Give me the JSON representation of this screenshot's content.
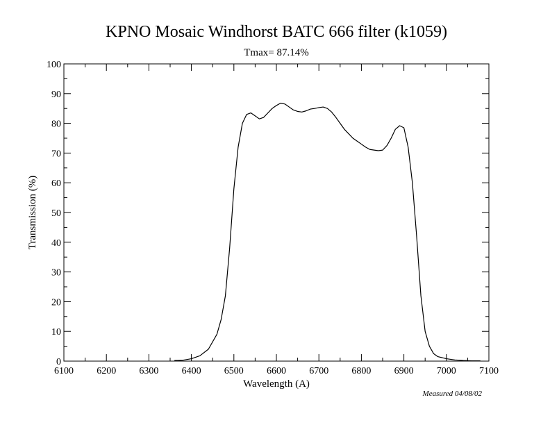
{
  "chart_data": {
    "type": "line",
    "title": "KPNO Mosaic Windhorst BATC 666 filter (k1059)",
    "subtitle": "Tmax= 87.14%",
    "xlabel": "Wavelength (A)",
    "ylabel": "Transmission (%)",
    "xlim": [
      6100,
      7100
    ],
    "ylim": [
      0,
      100
    ],
    "xticks": [
      6100,
      6200,
      6300,
      6400,
      6500,
      6600,
      6700,
      6800,
      6900,
      7000,
      7100
    ],
    "yticks": [
      0,
      10,
      20,
      30,
      40,
      50,
      60,
      70,
      80,
      90,
      100
    ],
    "grid": false,
    "annotation": "Measured 04/08/02",
    "series": [
      {
        "color": "#000000",
        "x": [
          6360,
          6380,
          6400,
          6420,
          6440,
          6460,
          6470,
          6480,
          6490,
          6500,
          6510,
          6520,
          6530,
          6540,
          6550,
          6560,
          6570,
          6580,
          6590,
          6600,
          6610,
          6620,
          6630,
          6640,
          6650,
          6660,
          6670,
          6680,
          6690,
          6700,
          6710,
          6720,
          6730,
          6740,
          6750,
          6760,
          6770,
          6780,
          6790,
          6800,
          6810,
          6820,
          6830,
          6840,
          6850,
          6860,
          6870,
          6880,
          6890,
          6900,
          6910,
          6920,
          6930,
          6940,
          6950,
          6960,
          6970,
          6980,
          7000,
          7020,
          7040,
          7060,
          7080
        ],
        "y": [
          0.2,
          0.3,
          0.8,
          1.8,
          4.0,
          9.0,
          14.0,
          22.0,
          38.0,
          58.0,
          72.0,
          80.0,
          83.0,
          83.5,
          82.5,
          81.5,
          82.0,
          83.5,
          85.0,
          86.0,
          86.8,
          86.5,
          85.5,
          84.5,
          84.0,
          83.8,
          84.2,
          84.8,
          85.0,
          85.3,
          85.5,
          85.0,
          83.8,
          82.0,
          80.0,
          78.0,
          76.5,
          75.0,
          74.0,
          73.0,
          72.0,
          71.2,
          71.0,
          70.8,
          71.0,
          72.5,
          75.0,
          78.0,
          79.2,
          78.5,
          72.0,
          60.0,
          42.0,
          22.0,
          10.0,
          5.0,
          2.5,
          1.5,
          0.8,
          0.4,
          0.2,
          0.1,
          0.1
        ]
      }
    ]
  }
}
